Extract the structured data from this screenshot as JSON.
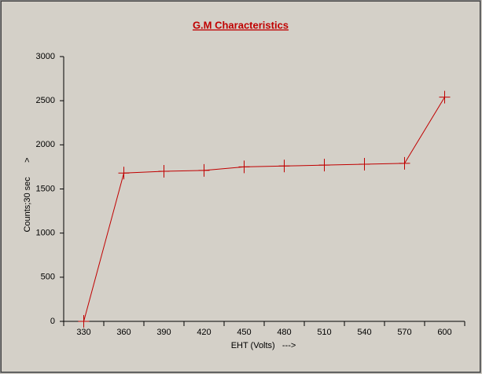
{
  "chart_data": {
    "type": "line",
    "title": "G.M Characteristics",
    "x_label": "EHT (Volts)   --->",
    "y_label": "Counts;30 sec      >",
    "categories": [
      "330",
      "360",
      "390",
      "420",
      "450",
      "480",
      "510",
      "540",
      "570",
      "600"
    ],
    "series": [
      {
        "name": "Counts",
        "color": "#c00000",
        "values": [
          0,
          1680,
          1700,
          1710,
          1750,
          1760,
          1770,
          1780,
          1790,
          2540
        ]
      }
    ],
    "ylim": [
      0,
      3000
    ],
    "yticks": [
      0,
      500,
      1000,
      1500,
      2000,
      2500,
      3000
    ],
    "grid": false
  }
}
